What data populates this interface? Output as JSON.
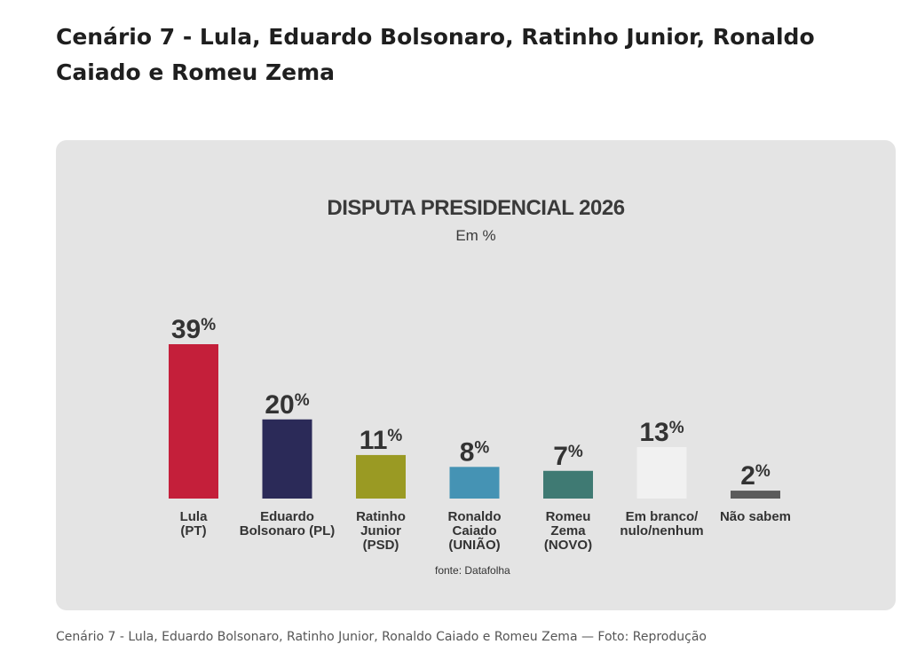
{
  "heading": "Cenário 7 - Lula, Eduardo Bolsonaro, Ratinho Junior, Ronaldo Caiado e Romeu Zema",
  "caption": "Cenário 7 - Lula, Eduardo Bolsonaro, Ratinho Junior, Ronaldo Caiado e Romeu Zema — Foto: Reprodução",
  "chart_data": {
    "type": "bar",
    "title": "DISPUTA PRESIDENCIAL 2026",
    "subtitle": "Em %",
    "source": "fonte: Datafolha",
    "unit": "%",
    "categories": [
      [
        "Lula",
        "(PT)"
      ],
      [
        "Eduardo",
        "Bolsonaro (PL)"
      ],
      [
        "Ratinho",
        "Junior",
        "(PSD)"
      ],
      [
        "Ronaldo",
        "Caiado",
        "(UNIÃO)"
      ],
      [
        "Romeu",
        "Zema",
        "(NOVO)"
      ],
      [
        "Em branco/",
        "nulo/nenhum"
      ],
      [
        "Não sabem"
      ]
    ],
    "values": [
      39,
      20,
      11,
      8,
      7,
      13,
      2
    ],
    "colors": [
      "#c41f3a",
      "#2b2a58",
      "#9a9a23",
      "#4593b4",
      "#3f7a73",
      "#f1f1f1",
      "#5b5b5b"
    ],
    "grid": false,
    "legend": "none"
  }
}
